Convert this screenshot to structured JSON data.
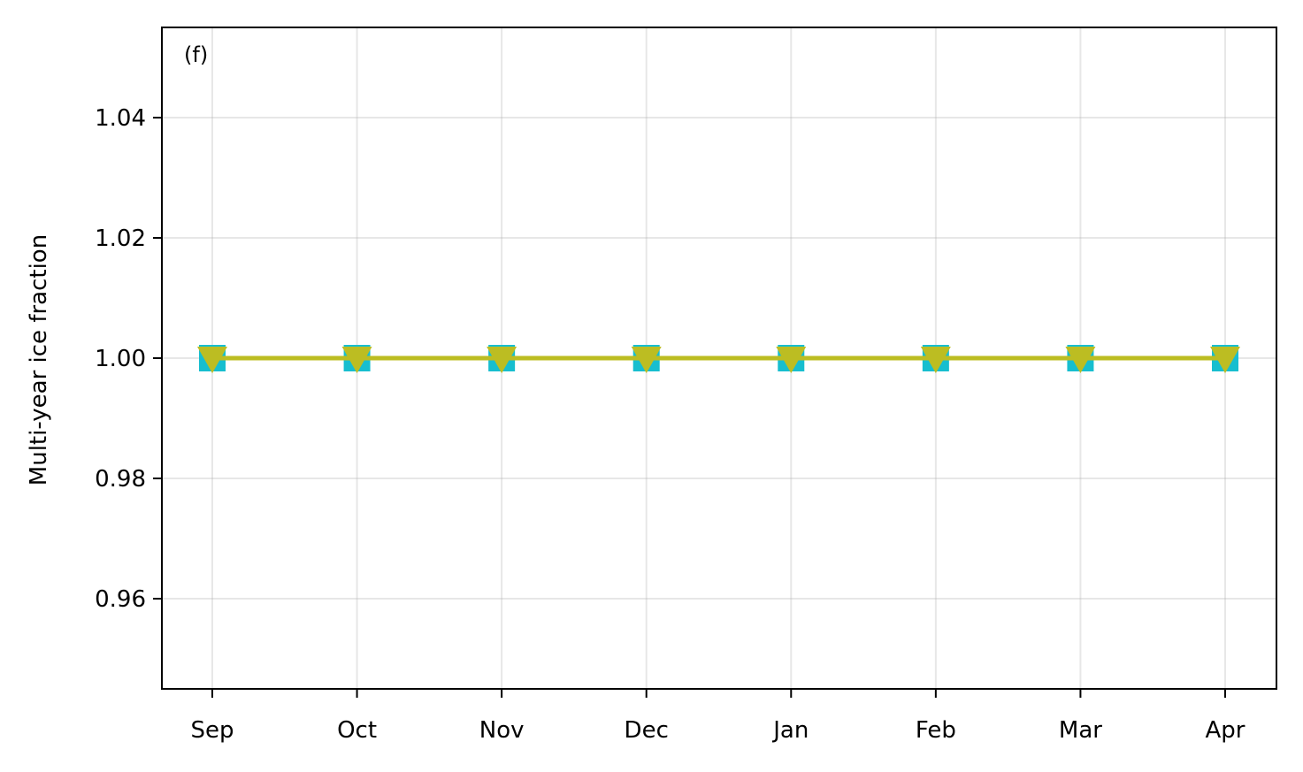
{
  "chart_data": {
    "type": "line",
    "panel_label": "(f)",
    "title": "",
    "xlabel": "",
    "ylabel": "Multi-year ice fraction",
    "categories": [
      "Sep",
      "Oct",
      "Nov",
      "Dec",
      "Jan",
      "Feb",
      "Mar",
      "Apr"
    ],
    "ylim": [
      0.945,
      1.055
    ],
    "yticks": [
      0.96,
      0.98,
      1.0,
      1.02,
      1.04
    ],
    "ytick_labels": [
      "0.96",
      "0.98",
      "1.00",
      "1.02",
      "1.04"
    ],
    "grid": true,
    "legend": "none",
    "series": [
      {
        "marker": "square",
        "color": "#17becf",
        "values": [
          1.0,
          1.0,
          1.0,
          1.0,
          1.0,
          1.0,
          1.0,
          1.0
        ]
      },
      {
        "marker": "triangle-down",
        "color": "#bcbd22",
        "values": [
          1.0,
          1.0,
          1.0,
          1.0,
          1.0,
          1.0,
          1.0,
          1.0
        ]
      }
    ]
  }
}
